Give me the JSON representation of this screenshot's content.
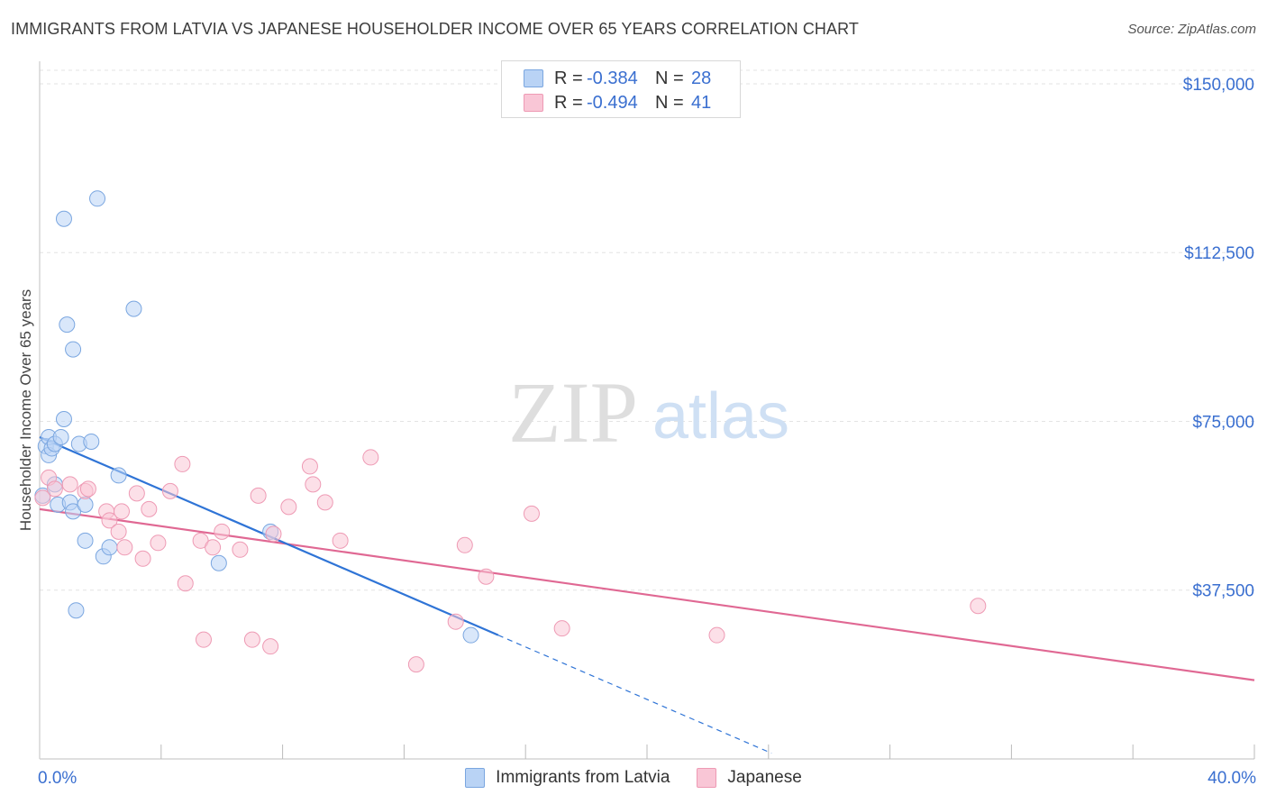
{
  "title": "IMMIGRANTS FROM LATVIA VS JAPANESE HOUSEHOLDER INCOME OVER 65 YEARS CORRELATION CHART",
  "source": "Source: ZipAtlas.com",
  "watermark": {
    "zip": "ZIP",
    "atlas": "atlas"
  },
  "legend_top": {
    "rows": [
      {
        "r_label": "R =",
        "r_value": "-0.384",
        "n_label": "N =",
        "n_value": "28"
      },
      {
        "r_label": "R =",
        "r_value": "-0.494",
        "n_label": "N =",
        "n_value": "41"
      }
    ]
  },
  "legend_bottom": {
    "items": [
      "Immigrants from Latvia",
      "Japanese"
    ]
  },
  "colors": {
    "blue_fill": "#b9d3f5",
    "blue_stroke": "#7aa6e0",
    "blue_line": "#2f74d6",
    "pink_fill": "#f9c6d6",
    "pink_stroke": "#ee9ab4",
    "pink_line": "#e06893",
    "axis_label": "#3a6fd0"
  },
  "chart_data": {
    "type": "scatter",
    "title": "IMMIGRANTS FROM LATVIA VS JAPANESE HOUSEHOLDER INCOME OVER 65 YEARS CORRELATION CHART",
    "xlabel": "",
    "ylabel": "Householder Income Over 65 years",
    "xlim": [
      0,
      40
    ],
    "ylim": [
      0,
      155000
    ],
    "x_tick_labels": [
      "0.0%",
      "40.0%"
    ],
    "y_ticks": [
      37500,
      75000,
      112500,
      150000
    ],
    "y_tick_labels": [
      "$37,500",
      "$75,000",
      "$112,500",
      "$150,000"
    ],
    "series": [
      {
        "name": "Immigrants from Latvia",
        "R": -0.384,
        "N": 28,
        "points": [
          [
            0.1,
            58500
          ],
          [
            0.2,
            69500
          ],
          [
            0.3,
            71500
          ],
          [
            0.3,
            67500
          ],
          [
            0.4,
            69000
          ],
          [
            0.5,
            70000
          ],
          [
            0.5,
            61000
          ],
          [
            0.6,
            56500
          ],
          [
            0.7,
            71500
          ],
          [
            0.8,
            75500
          ],
          [
            0.8,
            120000
          ],
          [
            0.9,
            96500
          ],
          [
            1.0,
            57000
          ],
          [
            1.1,
            91000
          ],
          [
            1.1,
            55000
          ],
          [
            1.2,
            33000
          ],
          [
            1.3,
            70000
          ],
          [
            1.5,
            56500
          ],
          [
            1.5,
            48500
          ],
          [
            1.7,
            70500
          ],
          [
            1.9,
            124500
          ],
          [
            2.1,
            45000
          ],
          [
            2.3,
            47000
          ],
          [
            2.6,
            63000
          ],
          [
            3.1,
            100000
          ],
          [
            5.9,
            43500
          ],
          [
            7.6,
            50500
          ],
          [
            14.2,
            27500
          ]
        ],
        "trend": {
          "x_start": 0,
          "y_start": 71500,
          "x_end": 15.1,
          "y_end": 27500,
          "dash_x_end": 24.1
        }
      },
      {
        "name": "Japanese",
        "R": -0.494,
        "N": 41,
        "points": [
          [
            0.1,
            58000
          ],
          [
            0.3,
            62500
          ],
          [
            0.5,
            60000
          ],
          [
            1.0,
            61000
          ],
          [
            1.5,
            59500
          ],
          [
            1.6,
            60000
          ],
          [
            2.2,
            55000
          ],
          [
            2.3,
            53000
          ],
          [
            2.6,
            50500
          ],
          [
            2.7,
            55000
          ],
          [
            2.8,
            47000
          ],
          [
            3.2,
            59000
          ],
          [
            3.4,
            44500
          ],
          [
            3.6,
            55500
          ],
          [
            3.9,
            48000
          ],
          [
            4.3,
            59500
          ],
          [
            4.7,
            65500
          ],
          [
            4.8,
            39000
          ],
          [
            5.3,
            48500
          ],
          [
            5.4,
            26500
          ],
          [
            5.7,
            47000
          ],
          [
            6.0,
            50500
          ],
          [
            6.6,
            46500
          ],
          [
            7.0,
            26500
          ],
          [
            7.2,
            58500
          ],
          [
            7.7,
            50000
          ],
          [
            7.6,
            25000
          ],
          [
            8.2,
            56000
          ],
          [
            8.9,
            65000
          ],
          [
            9.0,
            61000
          ],
          [
            9.4,
            57000
          ],
          [
            9.9,
            48500
          ],
          [
            10.9,
            67000
          ],
          [
            12.4,
            21000
          ],
          [
            14.0,
            47500
          ],
          [
            13.7,
            30500
          ],
          [
            14.7,
            40500
          ],
          [
            16.2,
            54500
          ],
          [
            17.2,
            29000
          ],
          [
            22.3,
            27500
          ],
          [
            30.9,
            34000
          ]
        ],
        "trend": {
          "x_start": 0,
          "y_start": 55500,
          "x_end": 40,
          "y_end": 17500
        }
      }
    ]
  }
}
